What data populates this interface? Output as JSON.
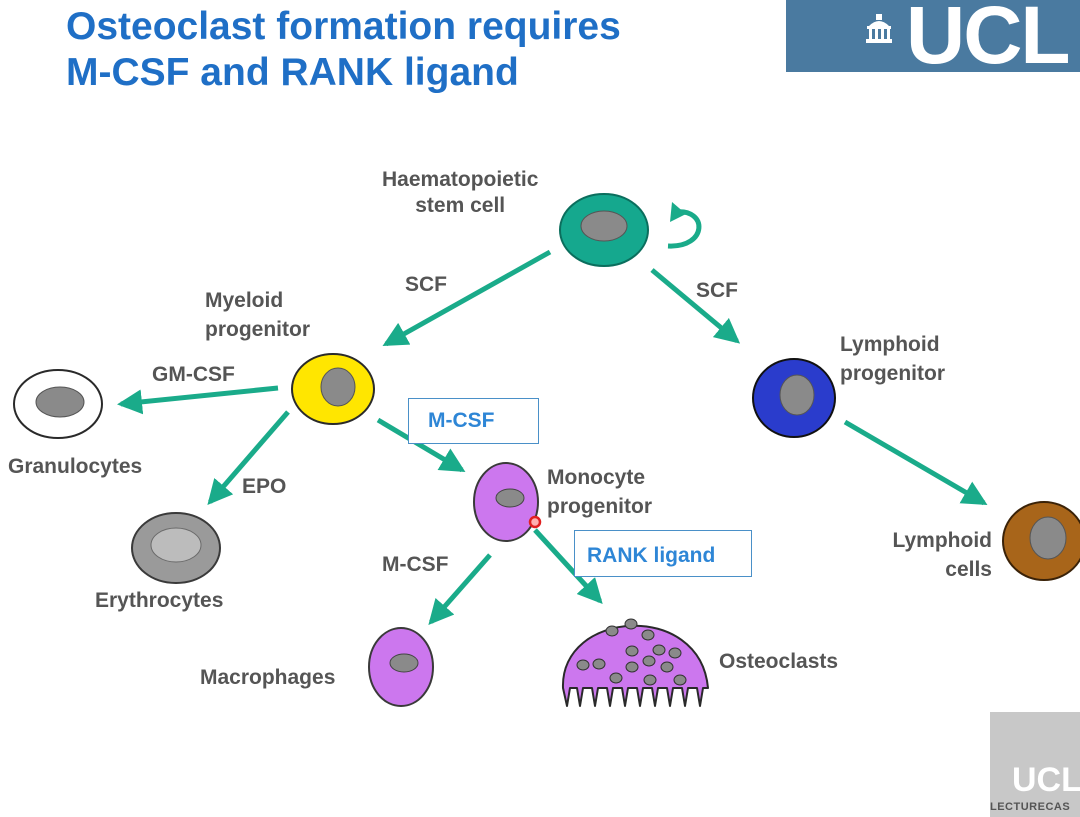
{
  "title": {
    "line1": "Osteoclast formation requires",
    "line2": "M-CSF and RANK ligand"
  },
  "logo": {
    "text": "UCL"
  },
  "nodes": {
    "hsc": {
      "line1": "Haematopoietic",
      "line2": "stem cell"
    },
    "myeloid": {
      "line1": "Myeloid",
      "line2": "progenitor"
    },
    "lymphoid": {
      "line1": "Lymphoid",
      "line2": "progenitor"
    },
    "granulocytes": "Granulocytes",
    "erythrocytes": "Erythrocytes",
    "monocyte": {
      "line1": "Monocyte",
      "line2": "progenitor"
    },
    "lymphoid_cells": {
      "line1": "Lymphoid",
      "line2": "cells"
    },
    "macrophages": "Macrophages",
    "osteoclasts": "Osteoclasts"
  },
  "factors": {
    "scf_left": "SCF",
    "scf_right": "SCF",
    "gm_csf": "GM-CSF",
    "epo": "EPO",
    "m_csf_boxed": "M-CSF",
    "m_csf": "M-CSF",
    "rank_ligand": "RANK ligand"
  },
  "watermark": {
    "logo": "UCL",
    "label": "LECTURECAS"
  },
  "colors": {
    "title": "#1f6fc6",
    "arrow": "#1aab8a",
    "label": "#555555",
    "box_text": "#2e86d6",
    "hsc": "#15a88e",
    "myeloid": "#ffe600",
    "lymphoid": "#2a3ccc",
    "erythrocyte": "#9a9a9a",
    "monocyte": "#cc77ee",
    "lymphoid_cell": "#a8651a",
    "nucleus": "#8a8a8a"
  }
}
